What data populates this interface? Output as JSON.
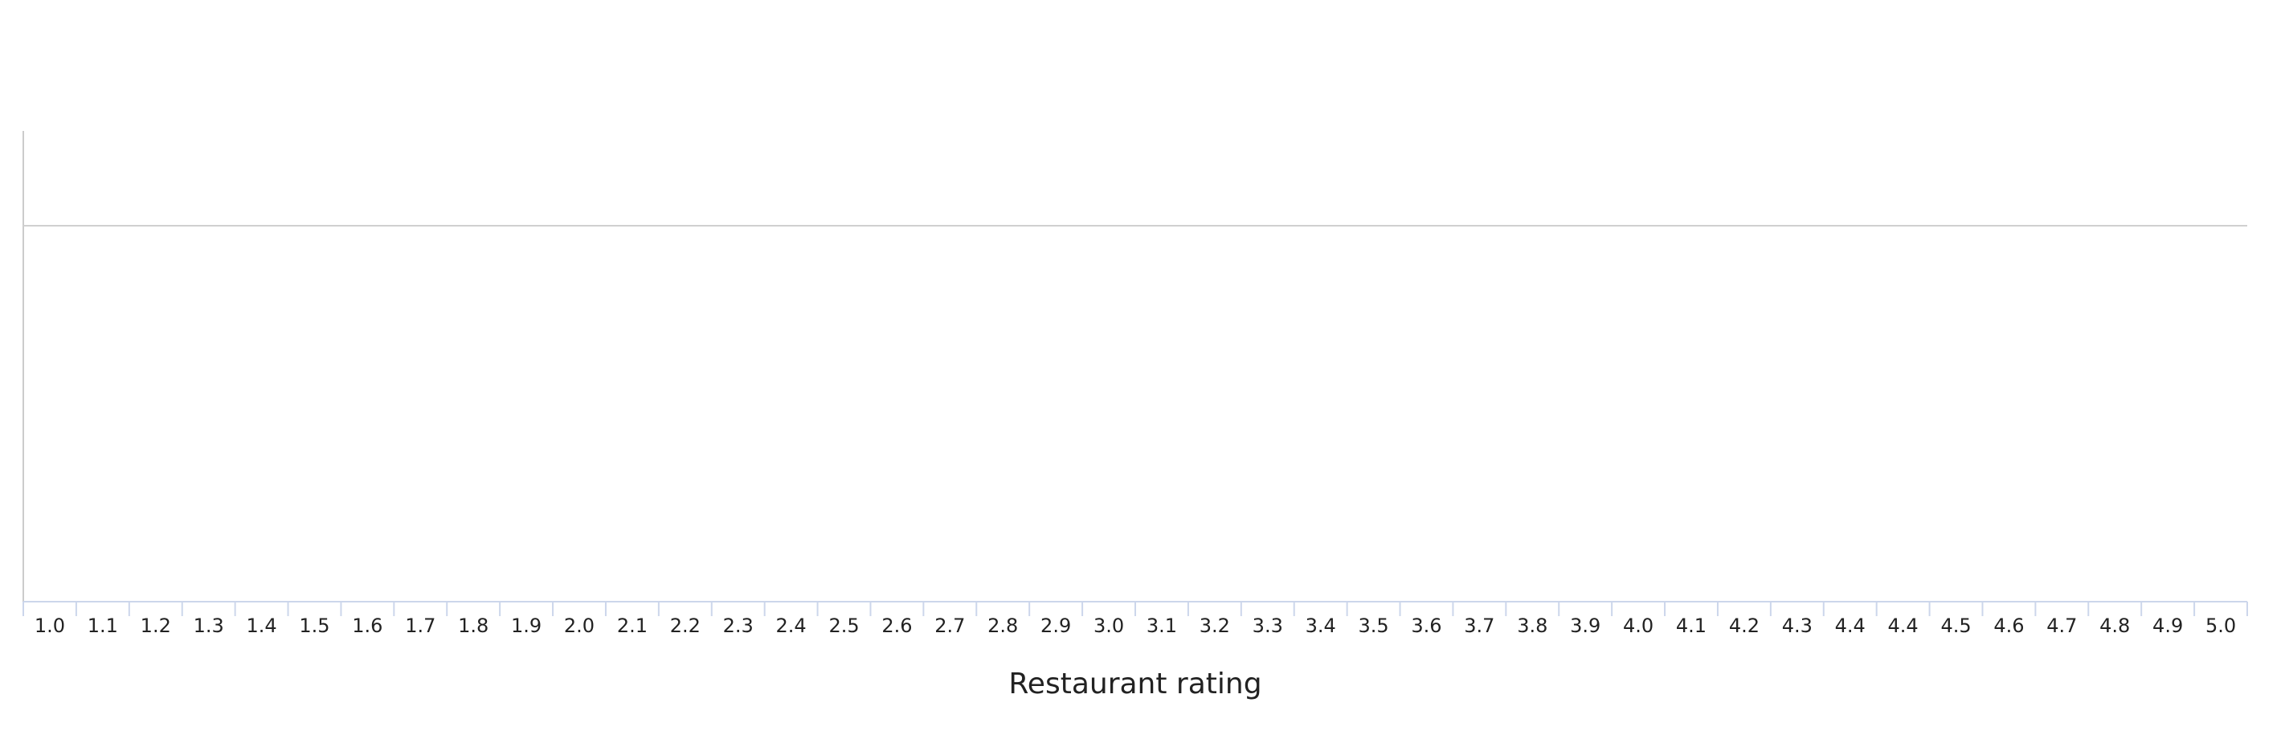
{
  "chart_data": {
    "type": "bar",
    "x_label": "Restaurant rating",
    "categories": [
      "1.0",
      "1.1",
      "1.2",
      "1.3",
      "1.4",
      "1.5",
      "1.6",
      "1.7",
      "1.8",
      "1.9",
      "2.0",
      "2.1",
      "2.2",
      "2.3",
      "2.4",
      "2.5",
      "2.6",
      "2.7",
      "2.8",
      "2.9",
      "3.0",
      "3.1",
      "3.2",
      "3.3",
      "3.4",
      "3.5",
      "3.6",
      "3.7",
      "3.8",
      "3.9",
      "4.0",
      "4.1",
      "4.2",
      "4.3",
      "4.4",
      "4.4",
      "4.5",
      "4.6",
      "4.7",
      "4.8",
      "4.9",
      "5.0"
    ]
  }
}
